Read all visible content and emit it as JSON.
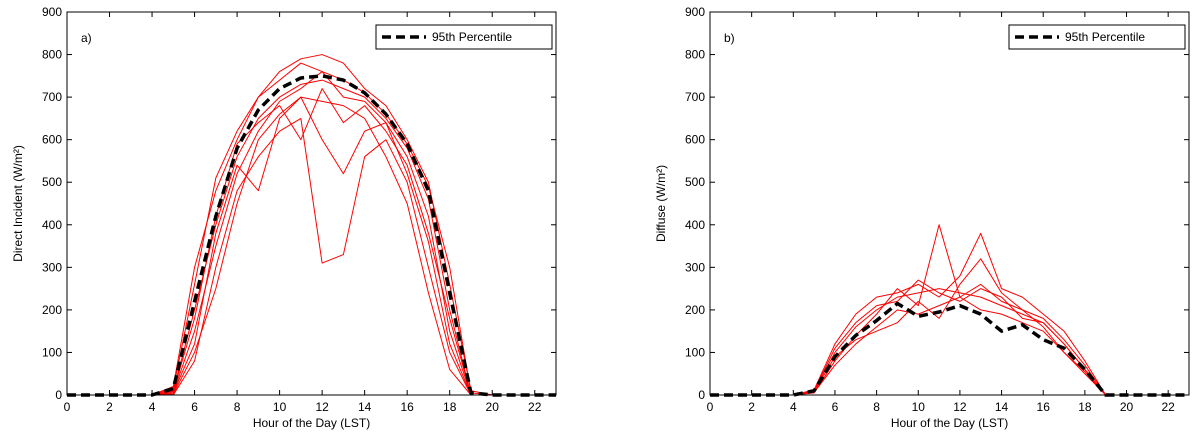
{
  "chart_data": [
    {
      "type": "line",
      "panel_label": "a)",
      "xlabel": "Hour of the Day (LST)",
      "ylabel": "Direct Incident (W/m²)",
      "xlim": [
        0,
        23
      ],
      "xticks": [
        0,
        2,
        4,
        6,
        8,
        10,
        12,
        14,
        16,
        18,
        20,
        22
      ],
      "ylim": [
        0,
        900
      ],
      "yticks": [
        0,
        100,
        200,
        300,
        400,
        500,
        600,
        700,
        800,
        900
      ],
      "legend": "upper right",
      "x": [
        0,
        1,
        2,
        3,
        4,
        5,
        6,
        7,
        8,
        9,
        10,
        11,
        12,
        13,
        14,
        15,
        16,
        17,
        18,
        19,
        20,
        21,
        22,
        23
      ],
      "series": [
        {
          "color": "#ff0000",
          "values": [
            0,
            0,
            0,
            0,
            0,
            10,
            200,
            400,
            560,
            650,
            700,
            730,
            740,
            720,
            700,
            650,
            580,
            460,
            200,
            0,
            0,
            0,
            0,
            0
          ]
        },
        {
          "color": "#ff0000",
          "values": [
            0,
            0,
            0,
            0,
            0,
            5,
            150,
            350,
            520,
            620,
            690,
            720,
            760,
            700,
            690,
            640,
            560,
            420,
            150,
            0,
            0,
            0,
            0,
            0
          ]
        },
        {
          "color": "#ff0000",
          "values": [
            0,
            0,
            0,
            0,
            0,
            20,
            300,
            480,
            600,
            700,
            760,
            790,
            800,
            780,
            720,
            680,
            600,
            500,
            260,
            10,
            0,
            0,
            0,
            0
          ]
        },
        {
          "color": "#ff0000",
          "values": [
            0,
            0,
            0,
            0,
            0,
            0,
            80,
            300,
            480,
            560,
            620,
            650,
            310,
            330,
            560,
            600,
            500,
            300,
            100,
            0,
            0,
            0,
            0,
            0
          ]
        },
        {
          "color": "#ff0000",
          "values": [
            0,
            0,
            0,
            0,
            0,
            8,
            180,
            420,
            590,
            640,
            680,
            600,
            720,
            640,
            680,
            620,
            540,
            380,
            180,
            0,
            0,
            0,
            0,
            0
          ]
        },
        {
          "color": "#ff0000",
          "values": [
            0,
            0,
            0,
            0,
            0,
            2,
            100,
            250,
            450,
            600,
            660,
            700,
            690,
            680,
            650,
            560,
            450,
            240,
            60,
            0,
            0,
            0,
            0,
            0
          ]
        },
        {
          "color": "#ff0000",
          "values": [
            0,
            0,
            0,
            0,
            0,
            15,
            260,
            510,
            620,
            700,
            740,
            780,
            760,
            740,
            710,
            660,
            590,
            490,
            300,
            5,
            0,
            0,
            0,
            0
          ]
        },
        {
          "color": "#ff0000",
          "values": [
            0,
            0,
            0,
            0,
            0,
            5,
            120,
            380,
            540,
            480,
            650,
            700,
            600,
            520,
            620,
            640,
            520,
            360,
            120,
            0,
            0,
            0,
            0,
            0
          ]
        },
        {
          "name": "95th Percentile",
          "color": "#000000",
          "dashed": true,
          "values": [
            0,
            0,
            0,
            0,
            0,
            15,
            220,
            420,
            580,
            670,
            720,
            745,
            750,
            740,
            710,
            660,
            590,
            480,
            240,
            5,
            0,
            0,
            0,
            0
          ]
        }
      ]
    },
    {
      "type": "line",
      "panel_label": "b)",
      "xlabel": "Hour of the Day (LST)",
      "ylabel": "Diffuse (W/m²)",
      "xlim": [
        0,
        23
      ],
      "xticks": [
        0,
        2,
        4,
        6,
        8,
        10,
        12,
        14,
        16,
        18,
        20,
        22
      ],
      "ylim": [
        0,
        900
      ],
      "yticks": [
        0,
        100,
        200,
        300,
        400,
        500,
        600,
        700,
        800,
        900
      ],
      "legend": "upper right",
      "x": [
        0,
        1,
        2,
        3,
        4,
        5,
        6,
        7,
        8,
        9,
        10,
        11,
        12,
        13,
        14,
        15,
        16,
        17,
        18,
        19,
        20,
        21,
        22,
        23
      ],
      "series": [
        {
          "color": "#ff0000",
          "values": [
            0,
            0,
            0,
            0,
            0,
            10,
            100,
            160,
            200,
            230,
            240,
            250,
            240,
            230,
            210,
            190,
            170,
            120,
            60,
            0,
            0,
            0,
            0,
            0
          ]
        },
        {
          "color": "#ff0000",
          "values": [
            0,
            0,
            0,
            0,
            0,
            5,
            80,
            140,
            190,
            250,
            210,
            400,
            230,
            260,
            220,
            200,
            180,
            130,
            70,
            0,
            0,
            0,
            0,
            0
          ]
        },
        {
          "color": "#ff0000",
          "values": [
            0,
            0,
            0,
            0,
            0,
            12,
            120,
            190,
            230,
            240,
            260,
            230,
            280,
            380,
            250,
            230,
            190,
            150,
            80,
            0,
            0,
            0,
            0,
            0
          ]
        },
        {
          "color": "#ff0000",
          "values": [
            0,
            0,
            0,
            0,
            0,
            8,
            90,
            130,
            150,
            170,
            220,
            180,
            260,
            320,
            240,
            200,
            160,
            100,
            50,
            0,
            0,
            0,
            0,
            0
          ]
        },
        {
          "color": "#ff0000",
          "values": [
            0,
            0,
            0,
            0,
            0,
            10,
            110,
            170,
            210,
            220,
            270,
            240,
            220,
            250,
            230,
            180,
            170,
            120,
            60,
            0,
            0,
            0,
            0,
            0
          ]
        },
        {
          "color": "#ff0000",
          "values": [
            0,
            0,
            0,
            0,
            0,
            6,
            70,
            120,
            160,
            200,
            190,
            210,
            230,
            200,
            190,
            170,
            150,
            100,
            55,
            0,
            0,
            0,
            0,
            0
          ]
        },
        {
          "name": "95th Percentile",
          "color": "#000000",
          "dashed": true,
          "values": [
            0,
            0,
            0,
            0,
            0,
            10,
            90,
            140,
            175,
            215,
            185,
            195,
            210,
            190,
            150,
            165,
            130,
            110,
            60,
            0,
            0,
            0,
            0,
            0
          ]
        }
      ]
    }
  ]
}
